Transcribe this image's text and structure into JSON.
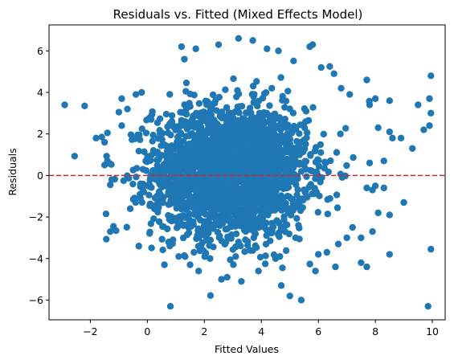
{
  "chart_data": {
    "type": "scatter",
    "title": "Residuals vs. Fitted (Mixed Effects Model)",
    "xlabel": "Fitted Values",
    "ylabel": "Residuals",
    "xlim": [
      -3.45,
      10.45
    ],
    "ylim": [
      -6.95,
      7.25
    ],
    "xticks": [
      -2,
      0,
      2,
      4,
      6,
      8,
      10
    ],
    "yticks": [
      -6,
      -4,
      -2,
      0,
      2,
      4,
      6
    ],
    "xtick_labels": [
      "−2",
      "0",
      "2",
      "4",
      "6",
      "8",
      "10"
    ],
    "ytick_labels": [
      "−6",
      "−4",
      "−2",
      "0",
      "2",
      "4",
      "6"
    ],
    "grid": false,
    "reference_line": {
      "y": 0,
      "style": "dashed",
      "color": "#d62728"
    },
    "point_color": "#1f77b4",
    "cloud": {
      "count": 2600,
      "x_mean": 2.9,
      "x_sd": 1.35,
      "y_mean": 0.2,
      "y_sd": 1.55
    },
    "points": [
      [
        -2.9,
        3.4
      ],
      [
        -2.2,
        3.35
      ],
      [
        -1.8,
        1.8
      ],
      [
        -1.6,
        1.85
      ],
      [
        -1.5,
        1.6
      ],
      [
        -1.4,
        2.05
      ],
      [
        -1.5,
        0.5
      ],
      [
        -1.4,
        0.7
      ],
      [
        -1.25,
        -0.2
      ],
      [
        -1.3,
        -0.45
      ],
      [
        -1.45,
        -1.85
      ],
      [
        -1.3,
        -2.7
      ],
      [
        -0.9,
        2.4
      ],
      [
        -1.0,
        3.05
      ],
      [
        -0.9,
        3.7
      ],
      [
        -0.7,
        3.2
      ],
      [
        -0.4,
        3.9
      ],
      [
        -0.2,
        4.0
      ],
      [
        -0.6,
        -1.6
      ],
      [
        -0.3,
        -3.4
      ],
      [
        0.6,
        -4.3
      ],
      [
        1.1,
        -3.9
      ],
      [
        1.8,
        -4.6
      ],
      [
        2.6,
        -5.0
      ],
      [
        3.3,
        -5.1
      ],
      [
        2.8,
        -4.9
      ],
      [
        3.9,
        -4.6
      ],
      [
        4.7,
        -5.3
      ],
      [
        5.0,
        -5.8
      ],
      [
        5.4,
        -6.0
      ],
      [
        5.9,
        -4.6
      ],
      [
        6.3,
        -3.7
      ],
      [
        6.6,
        -4.4
      ],
      [
        6.7,
        -3.3
      ],
      [
        7.0,
        -3.0
      ],
      [
        7.2,
        -2.5
      ],
      [
        7.5,
        -3.0
      ],
      [
        7.7,
        -4.4
      ],
      [
        7.5,
        -4.2
      ],
      [
        7.9,
        -2.7
      ],
      [
        8.1,
        -1.8
      ],
      [
        8.5,
        -3.8
      ],
      [
        7.7,
        -0.6
      ],
      [
        7.9,
        -0.7
      ],
      [
        8.0,
        -0.5
      ],
      [
        8.3,
        -0.6
      ],
      [
        8.5,
        -1.9
      ],
      [
        9.0,
        -1.3
      ],
      [
        7.8,
        0.6
      ],
      [
        8.3,
        0.7
      ],
      [
        8.1,
        2.3
      ],
      [
        8.5,
        2.1
      ],
      [
        8.6,
        1.8
      ],
      [
        8.9,
        1.8
      ],
      [
        7.8,
        3.4
      ],
      [
        8.0,
        3.7
      ],
      [
        8.5,
        3.6
      ],
      [
        7.7,
        4.6
      ],
      [
        9.3,
        1.3
      ],
      [
        9.5,
        3.4
      ],
      [
        9.7,
        2.2
      ],
      [
        9.9,
        2.4
      ],
      [
        9.95,
        3.0
      ],
      [
        9.9,
        3.7
      ],
      [
        9.95,
        4.8
      ],
      [
        9.85,
        -6.3
      ],
      [
        9.95,
        -3.55
      ],
      [
        6.8,
        4.2
      ],
      [
        6.1,
        5.2
      ],
      [
        6.4,
        5.25
      ],
      [
        6.55,
        4.9
      ],
      [
        7.1,
        3.9
      ],
      [
        5.8,
        6.3
      ],
      [
        5.7,
        6.2
      ],
      [
        4.6,
        6.0
      ],
      [
        4.2,
        6.1
      ],
      [
        3.7,
        6.5
      ],
      [
        3.2,
        6.6
      ],
      [
        2.5,
        6.3
      ],
      [
        1.2,
        6.2
      ],
      [
        1.7,
        6.1
      ],
      [
        1.3,
        5.6
      ],
      [
        6.0,
        -3.8
      ],
      [
        5.2,
        -3.0
      ],
      [
        0.9,
        -3.1
      ],
      [
        1.5,
        -4.3
      ],
      [
        2.2,
        -4.0
      ],
      [
        3.1,
        -3.9
      ],
      [
        4.5,
        -4.0
      ]
    ]
  }
}
